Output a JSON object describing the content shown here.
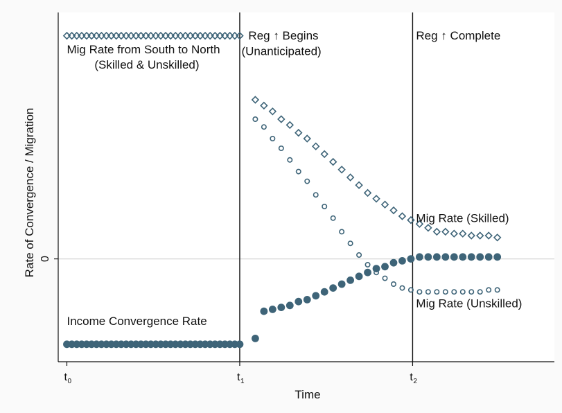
{
  "chart_data": {
    "type": "scatter",
    "xlabel": "Time",
    "ylabel": "Rate of Convergence / Migration",
    "x_ticks": [
      {
        "base": "t",
        "sub": "0",
        "x": 0
      },
      {
        "base": "t",
        "sub": "1",
        "x": 1
      },
      {
        "base": "t",
        "sub": "2",
        "x": 2
      }
    ],
    "y_ticks": [
      {
        "label": "0",
        "y": 0
      }
    ],
    "xlim": [
      -0.05,
      2.82
    ],
    "ylim": [
      -0.53,
      1.27
    ],
    "grid": false,
    "legend": "none",
    "colors": {
      "marker": "#3e6478",
      "line": "#111111",
      "zero_line": "#d4d4d4",
      "plot_bg": "#ffffff",
      "page_bg": "#fafafa"
    },
    "vlines": [
      1,
      2
    ],
    "zero_line": 0,
    "series": [
      {
        "marker": "diamond",
        "x": [
          0.0,
          0.0286,
          0.0571,
          0.0857,
          0.1143,
          0.1429,
          0.1714,
          0.2,
          0.2286,
          0.2571,
          0.2857,
          0.3143,
          0.3429,
          0.3714,
          0.4,
          0.4286,
          0.4571,
          0.4857,
          0.5143,
          0.5429,
          0.5714,
          0.6,
          0.6286,
          0.6571,
          0.6857,
          0.7143,
          0.7429,
          0.7714,
          0.8,
          0.8286,
          0.8571,
          0.8857,
          0.9143,
          0.9429,
          0.9714,
          1.0
        ],
        "y": [
          1.15,
          1.15,
          1.15,
          1.15,
          1.15,
          1.15,
          1.15,
          1.15,
          1.15,
          1.15,
          1.15,
          1.15,
          1.15,
          1.15,
          1.15,
          1.15,
          1.15,
          1.15,
          1.15,
          1.15,
          1.15,
          1.15,
          1.15,
          1.15,
          1.15,
          1.15,
          1.15,
          1.15,
          1.15,
          1.15,
          1.15,
          1.15,
          1.15,
          1.15,
          1.15,
          1.15
        ]
      },
      {
        "marker": "diamond",
        "x": [
          1.09,
          1.14,
          1.19,
          1.24,
          1.29,
          1.34,
          1.39,
          1.44,
          1.49,
          1.54,
          1.59,
          1.64,
          1.69,
          1.74,
          1.79,
          1.84,
          1.89,
          1.94,
          1.99,
          2.04,
          2.09,
          2.14,
          2.19,
          2.24,
          2.29,
          2.34,
          2.39,
          2.44,
          2.49
        ],
        "y": [
          0.82,
          0.79,
          0.76,
          0.72,
          0.69,
          0.65,
          0.62,
          0.58,
          0.54,
          0.5,
          0.46,
          0.42,
          0.38,
          0.34,
          0.31,
          0.28,
          0.25,
          0.22,
          0.2,
          0.18,
          0.16,
          0.14,
          0.14,
          0.13,
          0.13,
          0.12,
          0.12,
          0.12,
          0.11
        ]
      },
      {
        "marker": "circle_hollow",
        "x": [
          1.09,
          1.14,
          1.19,
          1.24,
          1.29,
          1.34,
          1.39,
          1.44,
          1.49,
          1.54,
          1.59,
          1.64,
          1.69,
          1.74,
          1.79,
          1.84,
          1.89,
          1.94,
          1.99,
          2.04,
          2.09,
          2.14,
          2.19,
          2.24,
          2.29,
          2.34,
          2.39,
          2.44,
          2.49
        ],
        "y": [
          0.72,
          0.68,
          0.62,
          0.57,
          0.51,
          0.45,
          0.4,
          0.33,
          0.27,
          0.21,
          0.14,
          0.08,
          0.02,
          -0.03,
          -0.07,
          -0.1,
          -0.13,
          -0.15,
          -0.16,
          -0.17,
          -0.17,
          -0.17,
          -0.17,
          -0.17,
          -0.17,
          -0.17,
          -0.17,
          -0.16,
          -0.16
        ]
      },
      {
        "marker": "circle_filled",
        "x": [
          0.0,
          0.0286,
          0.0571,
          0.0857,
          0.1143,
          0.1429,
          0.1714,
          0.2,
          0.2286,
          0.2571,
          0.2857,
          0.3143,
          0.3429,
          0.3714,
          0.4,
          0.4286,
          0.4571,
          0.4857,
          0.5143,
          0.5429,
          0.5714,
          0.6,
          0.6286,
          0.6571,
          0.6857,
          0.7143,
          0.7429,
          0.7714,
          0.8,
          0.8286,
          0.8571,
          0.8857,
          0.9143,
          0.9429,
          0.9714,
          1.0,
          1.09,
          1.14,
          1.19,
          1.24,
          1.29,
          1.34,
          1.39,
          1.44,
          1.49,
          1.54,
          1.59,
          1.64,
          1.69,
          1.74,
          1.79,
          1.84,
          1.89,
          1.94,
          1.99,
          2.04,
          2.09,
          2.14,
          2.19,
          2.24,
          2.29,
          2.34,
          2.39,
          2.44,
          2.49
        ],
        "y": [
          -0.44,
          -0.44,
          -0.44,
          -0.44,
          -0.44,
          -0.44,
          -0.44,
          -0.44,
          -0.44,
          -0.44,
          -0.44,
          -0.44,
          -0.44,
          -0.44,
          -0.44,
          -0.44,
          -0.44,
          -0.44,
          -0.44,
          -0.44,
          -0.44,
          -0.44,
          -0.44,
          -0.44,
          -0.44,
          -0.44,
          -0.44,
          -0.44,
          -0.44,
          -0.44,
          -0.44,
          -0.44,
          -0.44,
          -0.44,
          -0.44,
          -0.44,
          -0.41,
          -0.27,
          -0.26,
          -0.25,
          -0.24,
          -0.22,
          -0.21,
          -0.19,
          -0.17,
          -0.15,
          -0.13,
          -0.11,
          -0.09,
          -0.07,
          -0.05,
          -0.04,
          -0.02,
          -0.01,
          0.0,
          0.01,
          0.01,
          0.01,
          0.01,
          0.01,
          0.01,
          0.01,
          0.01,
          0.01,
          0.01
        ]
      }
    ],
    "annotations": [
      {
        "lines": [
          "Mig Rate from South to North"
        ],
        "x": 0.0,
        "y": 1.06,
        "anchor": "start"
      },
      {
        "lines": [
          "(Skilled & Unskilled)"
        ],
        "x": 0.16,
        "y": 0.98,
        "anchor": "start"
      },
      {
        "lines": [
          "Reg ↑ Begins"
        ],
        "x": 1.05,
        "y": 1.13,
        "anchor": "start"
      },
      {
        "lines": [
          "(Unanticipated)"
        ],
        "x": 1.01,
        "y": 1.05,
        "anchor": "start"
      },
      {
        "lines": [
          "Reg ↑ Complete"
        ],
        "x": 2.02,
        "y": 1.13,
        "anchor": "start"
      },
      {
        "lines": [
          "Mig Rate (Skilled)"
        ],
        "x": 2.02,
        "y": 0.19,
        "anchor": "start"
      },
      {
        "lines": [
          "Mig Rate (Unskilled)"
        ],
        "x": 2.02,
        "y": -0.25,
        "anchor": "start"
      },
      {
        "lines": [
          "Income Convergence Rate"
        ],
        "x": 0.0,
        "y": -0.34,
        "anchor": "start"
      }
    ]
  }
}
